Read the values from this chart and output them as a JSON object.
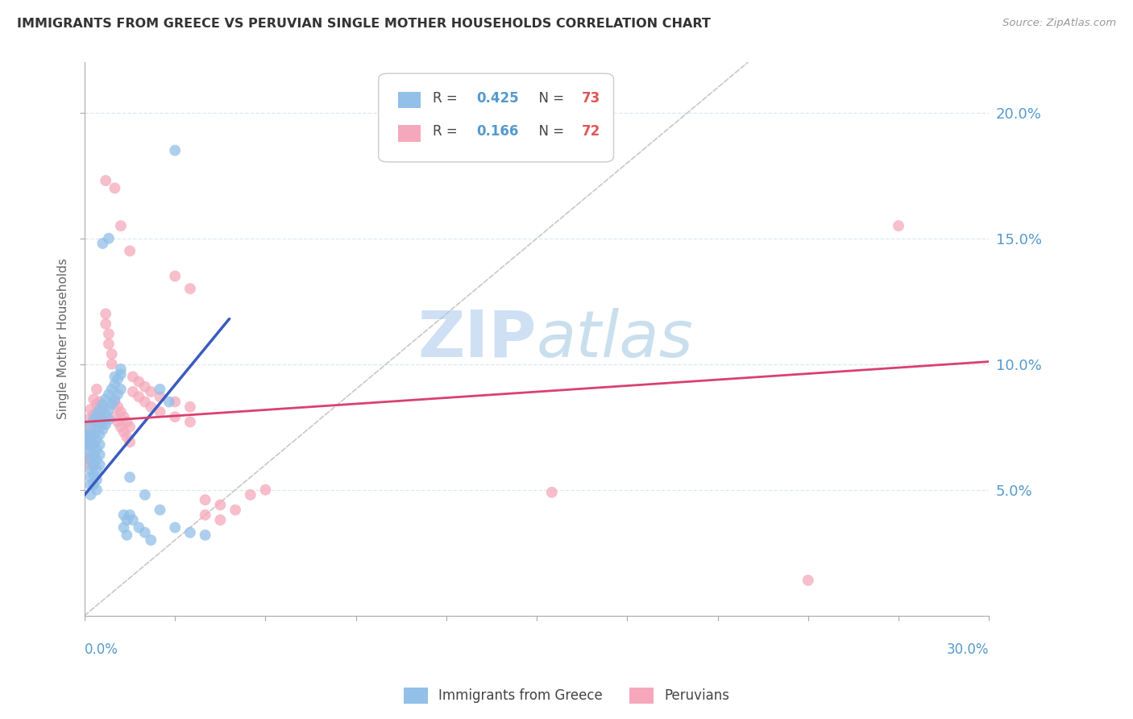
{
  "title": "IMMIGRANTS FROM GREECE VS PERUVIAN SINGLE MOTHER HOUSEHOLDS CORRELATION CHART",
  "source": "Source: ZipAtlas.com",
  "ylabel": "Single Mother Households",
  "ytick_labels": [
    "5.0%",
    "10.0%",
    "15.0%",
    "20.0%"
  ],
  "ytick_values": [
    0.05,
    0.1,
    0.15,
    0.2
  ],
  "xlim": [
    0.0,
    0.3
  ],
  "ylim": [
    0.0,
    0.22
  ],
  "series1_color": "#92c0e8",
  "series2_color": "#f5a8bc",
  "trendline1_color": "#3a5bbf",
  "trendline2_color": "#d94070",
  "diagonal_color": "#c8c8c8",
  "watermark": "ZIPatlas",
  "watermark_color_zip": "#a8c4e8",
  "watermark_color_atlas": "#8ab0d8",
  "series1_label": "Immigrants from Greece",
  "series2_label": "Peruvians",
  "legend_color_1": "#92c0e8",
  "legend_color_2": "#f5a8bc",
  "legend_r1": "0.425",
  "legend_n1": "73",
  "legend_r2": "0.166",
  "legend_n2": "72",
  "trendline1_x0": 0.0,
  "trendline1_y0": 0.048,
  "trendline1_x1": 0.048,
  "trendline1_y1": 0.118,
  "trendline2_x0": 0.0,
  "trendline2_y0": 0.077,
  "trendline2_x1": 0.3,
  "trendline2_y1": 0.101
}
